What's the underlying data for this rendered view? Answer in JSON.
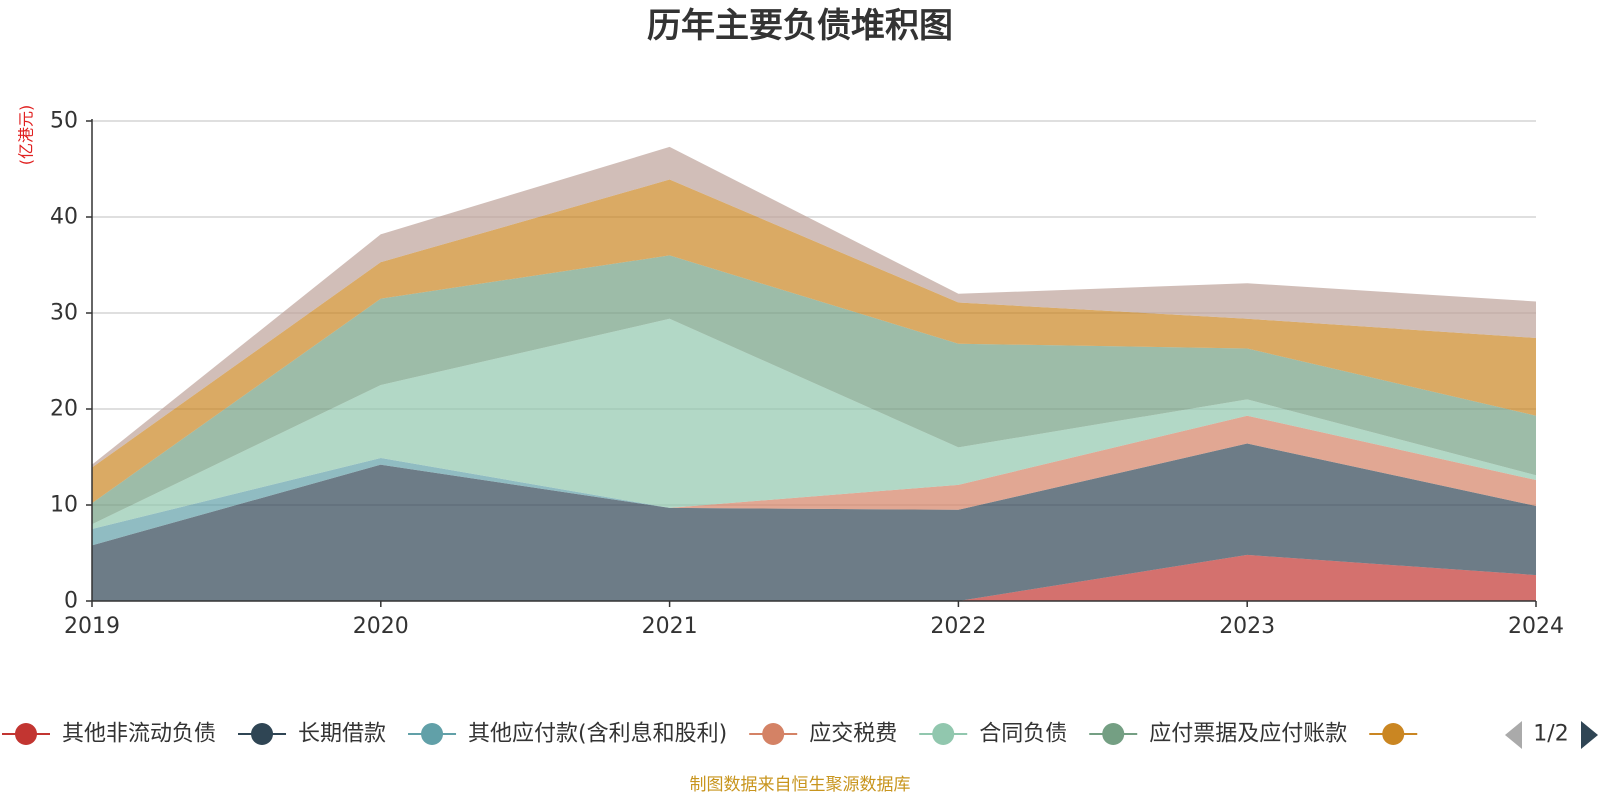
{
  "chart_data": {
    "type": "area",
    "title": "历年主要负债堆积图",
    "unit_label": "(亿港元)",
    "xlabel": "",
    "ylabel": "",
    "x": [
      "2019",
      "2020",
      "2021",
      "2022",
      "2023",
      "2024"
    ],
    "ylim": [
      0,
      50
    ],
    "yticks": [
      "0",
      "10",
      "20",
      "30",
      "40",
      "50"
    ],
    "grid": true,
    "legend_position": "bottom",
    "legend_page": "1/2",
    "series": [
      {
        "name": "其他非流动负债",
        "color": "#c23531",
        "values": [
          0.0,
          0.0,
          0.0,
          0.0,
          4.8,
          2.7
        ]
      },
      {
        "name": "长期借款",
        "color": "#2f4554",
        "values": [
          5.8,
          14.2,
          9.7,
          9.5,
          11.6,
          7.2
        ]
      },
      {
        "name": "其他应付款(含利息和股利)",
        "color": "#61a0a8",
        "values": [
          1.7,
          0.7,
          0.0,
          0.0,
          0.0,
          0.0
        ]
      },
      {
        "name": "应交税费",
        "color": "#d48265",
        "values": [
          0.0,
          0.0,
          0.0,
          2.6,
          2.9,
          2.7
        ]
      },
      {
        "name": "合同负债",
        "color": "#91c7ae",
        "values": [
          0.5,
          7.6,
          19.7,
          3.9,
          1.7,
          0.5
        ]
      },
      {
        "name": "应付票据及应付账款",
        "color": "#749f83",
        "values": [
          2.2,
          9.0,
          6.6,
          10.8,
          5.3,
          6.2
        ]
      },
      {
        "name": "",
        "color": "#ca8622",
        "values": [
          3.7,
          3.8,
          7.9,
          4.3,
          3.1,
          8.1
        ]
      },
      {
        "name": "",
        "color": "#bda29a",
        "values": [
          0.3,
          2.9,
          3.4,
          0.9,
          3.7,
          3.8
        ]
      }
    ]
  },
  "footer": {
    "source_text": "制图数据来自恒生聚源数据库"
  }
}
